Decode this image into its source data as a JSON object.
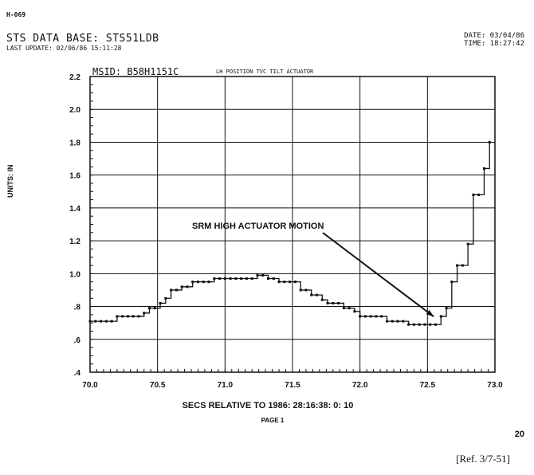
{
  "header": {
    "doc_id": "H-069",
    "database": "STS DATA BASE: STS51LDB",
    "last_update": "LAST UPDATE: 02/06/86  15:11:28",
    "date": "DATE: 03/04/86",
    "time": "TIME: 18:27:42"
  },
  "units_label": "UNITS: IN",
  "page_number": "20",
  "reference": "[Ref. 3/7-51]",
  "chart_data": {
    "type": "line",
    "msid": "MSID: B58H1151C",
    "title": "LH POSITION TVC TILT ACTUATOR",
    "xlabel": "SECS RELATIVE TO 1986:  28:16:38:  0: 10",
    "page_label": "PAGE    1",
    "ylabel": "UNITS: IN",
    "xlim": [
      70.0,
      73.0
    ],
    "ylim": [
      0.4,
      2.2
    ],
    "x_ticks": [
      "70.0",
      "70.5",
      "71.0",
      "71.5",
      "72.0",
      "72.5",
      "73.0"
    ],
    "y_ticks": [
      ".4",
      ".6",
      ".8",
      "1.0",
      "1.2",
      "1.4",
      "1.6",
      "1.8",
      "2.0",
      "2.2"
    ],
    "grid": true,
    "annotation": {
      "text": "SRM HIGH ACTUATOR MOTION",
      "target": [
        72.57,
        0.69
      ]
    },
    "series": [
      {
        "x": [
          70.0,
          70.04,
          70.08,
          70.12,
          70.16,
          70.2,
          70.24,
          70.28,
          70.32,
          70.36,
          70.4,
          70.44,
          70.48,
          70.52,
          70.56,
          70.6,
          70.64,
          70.68,
          70.72,
          70.76,
          70.8,
          70.84,
          70.88,
          70.92,
          70.96,
          71.0,
          71.04,
          71.08,
          71.12,
          71.16,
          71.2,
          71.24,
          71.28,
          71.32,
          71.36,
          71.4,
          71.44,
          71.48,
          71.52,
          71.56,
          71.6,
          71.64,
          71.68,
          71.72,
          71.76,
          71.8,
          71.84,
          71.88,
          71.92,
          71.96,
          72.0,
          72.04,
          72.08,
          72.12,
          72.16,
          72.2,
          72.24,
          72.28,
          72.32,
          72.36,
          72.4,
          72.44,
          72.48,
          72.52,
          72.56,
          72.6,
          72.64,
          72.68,
          72.72,
          72.76,
          72.8,
          72.84,
          72.88,
          72.92,
          72.96
        ],
        "y": [
          0.71,
          0.71,
          0.71,
          0.71,
          0.71,
          0.74,
          0.74,
          0.74,
          0.74,
          0.74,
          0.76,
          0.79,
          0.79,
          0.82,
          0.85,
          0.9,
          0.9,
          0.92,
          0.92,
          0.95,
          0.95,
          0.95,
          0.95,
          0.97,
          0.97,
          0.97,
          0.97,
          0.97,
          0.97,
          0.97,
          0.97,
          0.99,
          0.99,
          0.97,
          0.97,
          0.95,
          0.95,
          0.95,
          0.95,
          0.9,
          0.9,
          0.87,
          0.87,
          0.84,
          0.82,
          0.82,
          0.82,
          0.79,
          0.79,
          0.77,
          0.74,
          0.74,
          0.74,
          0.74,
          0.74,
          0.71,
          0.71,
          0.71,
          0.71,
          0.69,
          0.69,
          0.69,
          0.69,
          0.69,
          0.69,
          0.74,
          0.79,
          0.95,
          1.05,
          1.05,
          1.18,
          1.48,
          1.48,
          1.64,
          1.8
        ]
      }
    ]
  }
}
